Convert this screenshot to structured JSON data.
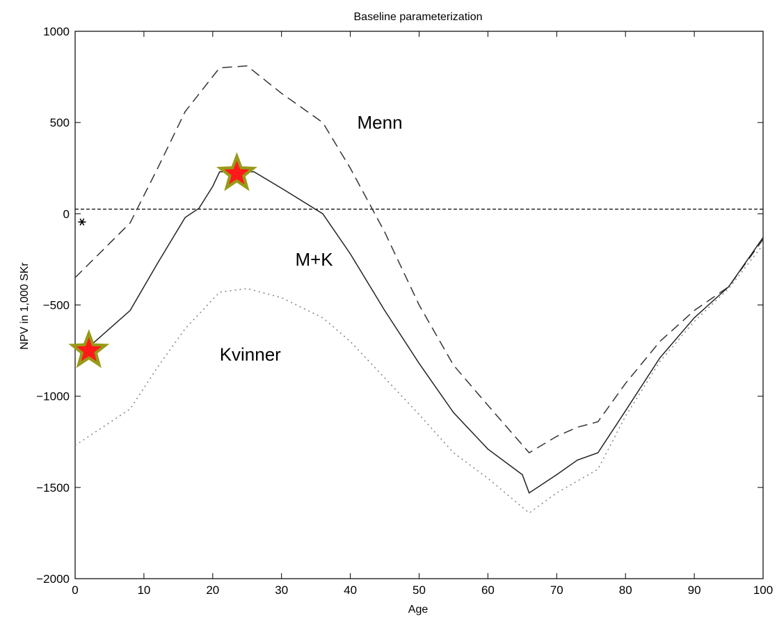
{
  "chart_data": {
    "type": "line",
    "title": "Baseline parameterization",
    "xlabel": "Age",
    "ylabel": "NPV in 1,000 SKr",
    "xlim": [
      0,
      100
    ],
    "ylim": [
      -2000,
      1000
    ],
    "xticks": [
      0,
      10,
      20,
      30,
      40,
      50,
      60,
      70,
      80,
      90,
      100
    ],
    "yticks": [
      -2000,
      -1500,
      -1000,
      -500,
      0,
      500,
      1000
    ],
    "ytick_labels": [
      "−2000",
      "−1500",
      "−1000",
      "−500",
      "0",
      "500",
      "1000"
    ],
    "grid": false,
    "series": [
      {
        "name": "Menn",
        "style": "dashed",
        "color": "#333333",
        "x": [
          0,
          4,
          8,
          12,
          16,
          21,
          25,
          30,
          36,
          40,
          45,
          50,
          55,
          60,
          66,
          70,
          73,
          76,
          80,
          85,
          90,
          95,
          100
        ],
        "y": [
          -350,
          -200,
          -50,
          250,
          560,
          800,
          810,
          660,
          500,
          250,
          -100,
          -500,
          -830,
          -1050,
          -1310,
          -1220,
          -1170,
          -1140,
          -930,
          -700,
          -530,
          -400,
          -140
        ]
      },
      {
        "name": "M+K",
        "style": "solid",
        "color": "#222222",
        "x": [
          2,
          8,
          12,
          16,
          18,
          20,
          21,
          26,
          30,
          36,
          40,
          45,
          50,
          55,
          60,
          65,
          66,
          70,
          73,
          76,
          80,
          85,
          90,
          95,
          100
        ],
        "y": [
          -730,
          -530,
          -270,
          -20,
          30,
          150,
          230,
          230,
          140,
          0,
          -220,
          -530,
          -820,
          -1090,
          -1290,
          -1430,
          -1530,
          -1430,
          -1350,
          -1310,
          -1080,
          -790,
          -570,
          -400,
          -130
        ]
      },
      {
        "name": "Kvinner",
        "style": "dotted",
        "color": "#888888",
        "x": [
          0,
          8,
          12,
          16,
          21,
          25,
          30,
          36,
          40,
          45,
          50,
          55,
          60,
          66,
          70,
          76,
          80,
          85,
          90,
          95,
          100
        ],
        "y": [
          -1270,
          -1070,
          -840,
          -630,
          -430,
          -410,
          -460,
          -570,
          -700,
          -900,
          -1100,
          -1310,
          -1450,
          -1640,
          -1530,
          -1400,
          -1110,
          -810,
          -590,
          -410,
          -170
        ]
      }
    ],
    "reference_line": {
      "y": 25,
      "style": "dashed",
      "color": "#000000"
    },
    "markers": [
      {
        "x": 2,
        "y": -750,
        "shape": "star",
        "fill": "#ff1a1a",
        "outline": "#999b18"
      },
      {
        "x": 23.5,
        "y": 220,
        "shape": "star",
        "fill": "#ff1a1a",
        "outline": "#999b18"
      },
      {
        "x": 1,
        "y": -45,
        "shape": "asterisk",
        "fill": "#000000",
        "outline": "#000000"
      }
    ],
    "annotations": [
      {
        "text": "Menn",
        "x": 41,
        "y": 500
      },
      {
        "text": "M+K",
        "x": 32,
        "y": -250
      },
      {
        "text": "Kvinner",
        "x": 21,
        "y": -770
      }
    ]
  }
}
